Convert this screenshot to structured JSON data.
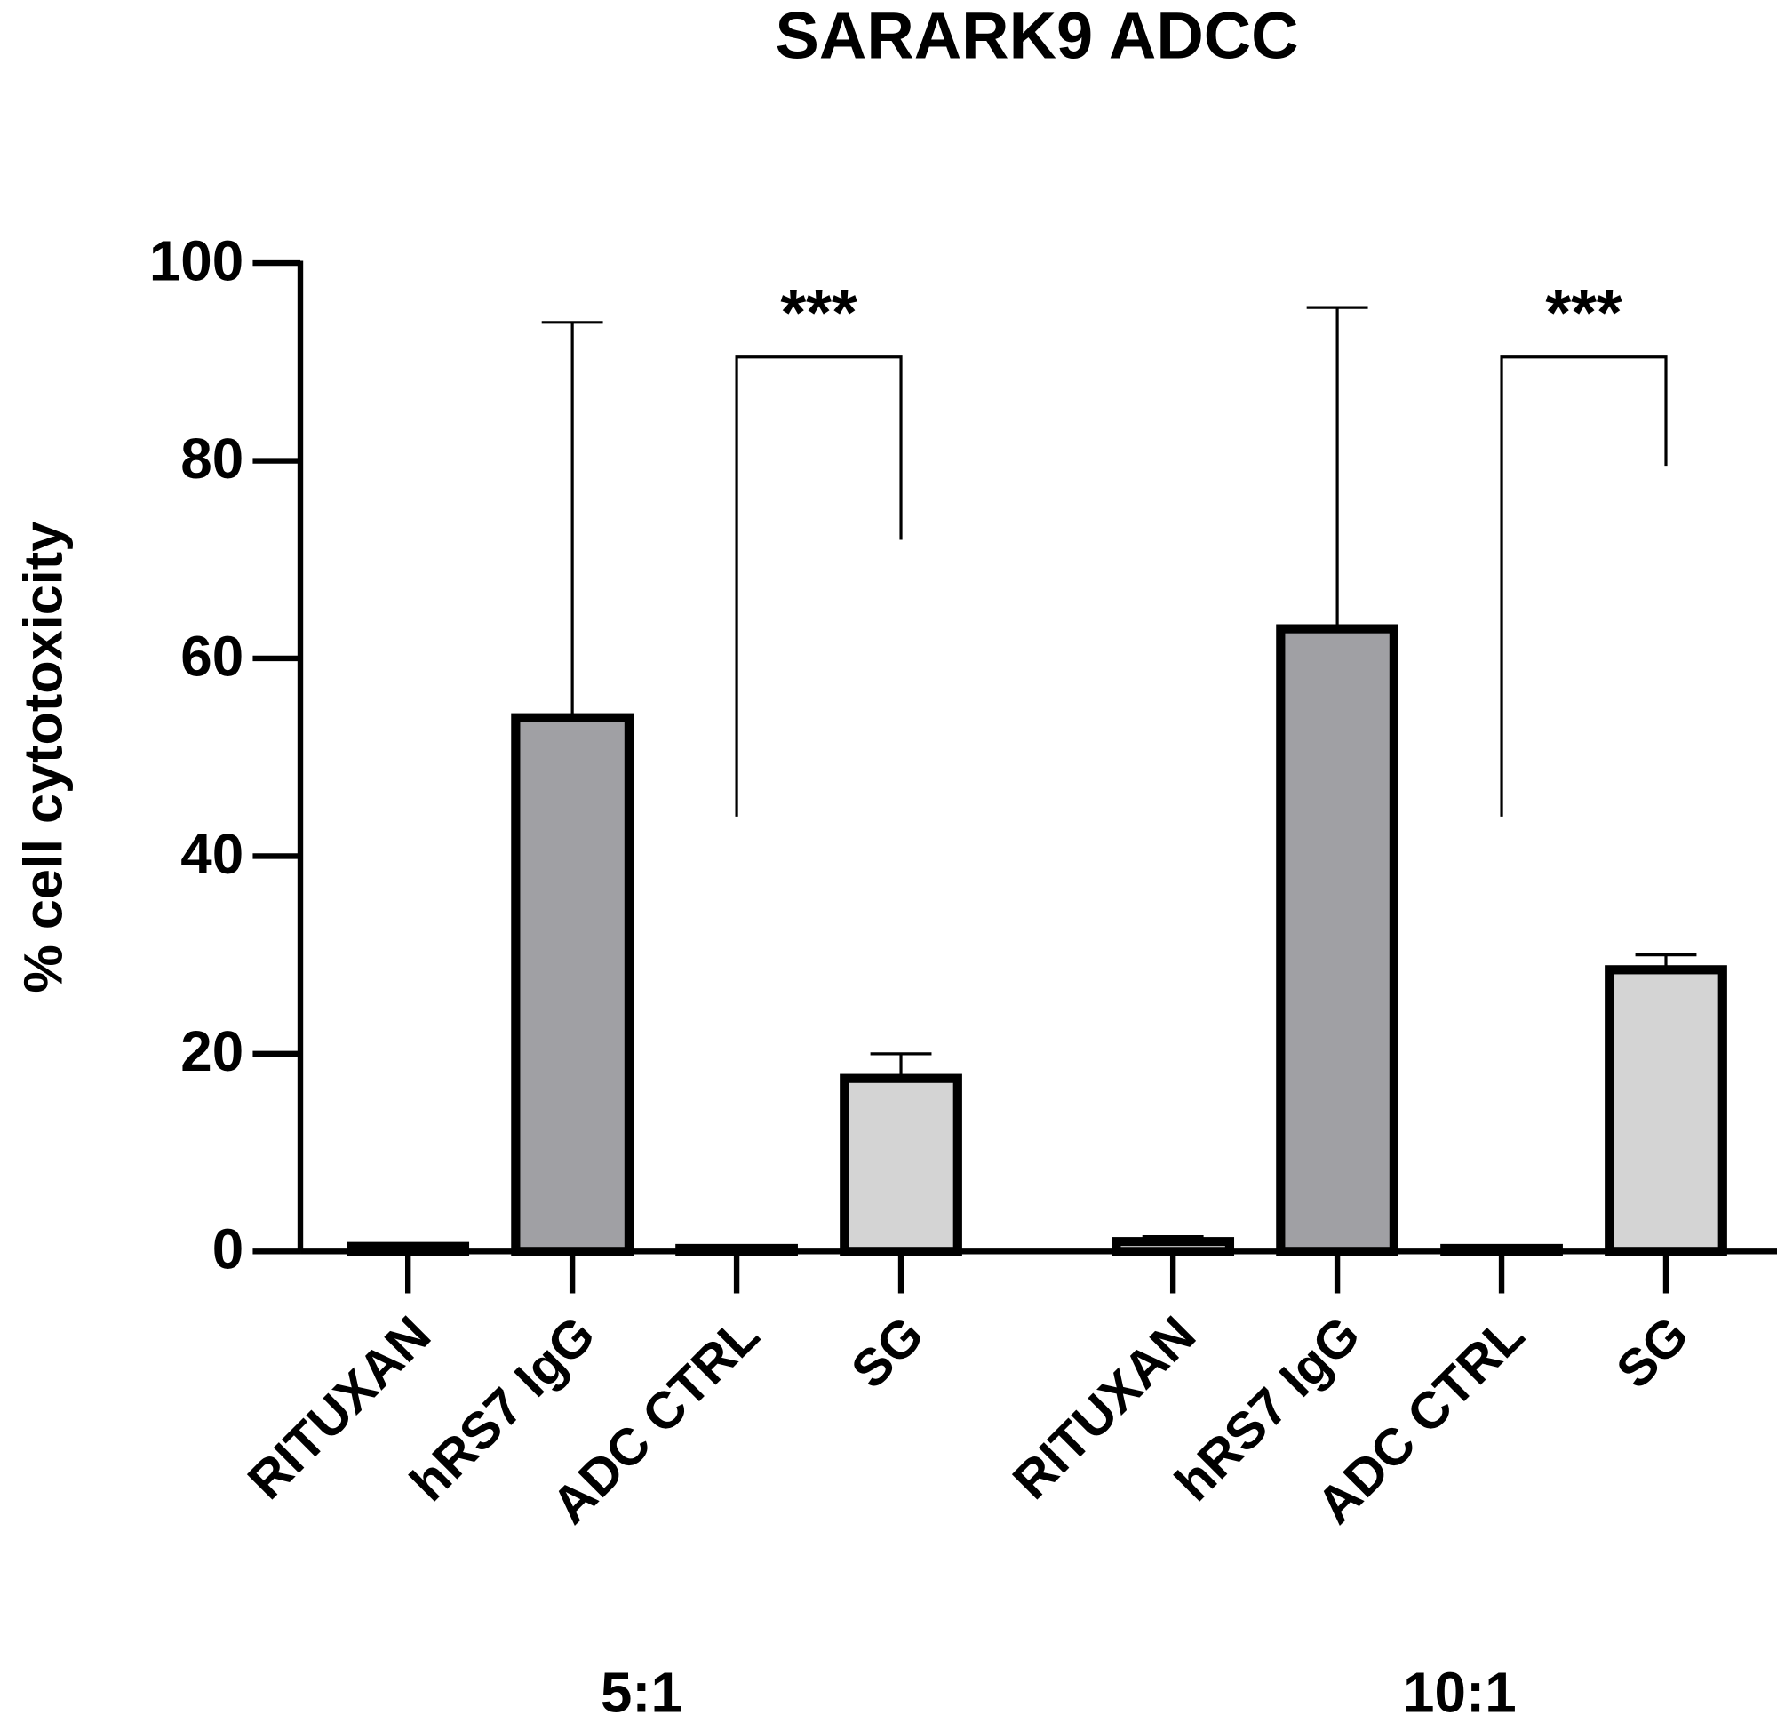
{
  "chart_data": {
    "type": "bar",
    "title": "SARARK9 ADCC",
    "ylabel": "% cell cytotoxicity",
    "categories": [
      "RITUXAN",
      "hRS7 IgG",
      "ADC CTRL",
      "SG",
      "RITUXAN",
      "hRS7 IgG",
      "ADC CTRL",
      "SG"
    ],
    "values": [
      0.5,
      54,
      0.3,
      17.5,
      1,
      63,
      0.3,
      28.5
    ],
    "errors": [
      0,
      40,
      0,
      2.5,
      0.5,
      32.5,
      0,
      1.5
    ],
    "colors": [
      "#ffffff",
      "#a0a0a4",
      "#ffffff",
      "#d4d4d4",
      "#ffffff",
      "#a0a0a4",
      "#ffffff",
      "#d4d4d4"
    ],
    "group_labels": [
      "5:1",
      "10:1"
    ],
    "annotations": [
      "***",
      "***"
    ],
    "ylim": [
      0,
      100
    ],
    "yticks": [
      0,
      20,
      40,
      60,
      80,
      100
    ]
  }
}
